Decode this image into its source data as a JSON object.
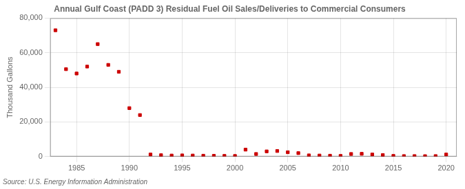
{
  "chart_data": {
    "type": "scatter",
    "title": "Annual Gulf Coast (PADD 3) Residual Fuel Oil Sales/Deliveries to Commercial Consumers",
    "ylabel": "Thousand Gallons",
    "source": "Source: U.S. Energy Information Administration",
    "x": [
      1983,
      1984,
      1985,
      1986,
      1987,
      1988,
      1989,
      1990,
      1991,
      1992,
      1993,
      1994,
      1995,
      1996,
      1997,
      1998,
      1999,
      2000,
      2001,
      2002,
      2003,
      2004,
      2005,
      2006,
      2007,
      2008,
      2009,
      2010,
      2011,
      2012,
      2013,
      2014,
      2015,
      2016,
      2017,
      2018,
      2019,
      2020
    ],
    "values": [
      73000,
      50500,
      48000,
      52000,
      65000,
      53000,
      49000,
      28000,
      24000,
      1200,
      800,
      600,
      700,
      600,
      500,
      450,
      400,
      350,
      4000,
      1500,
      3000,
      3200,
      2500,
      2000,
      700,
      600,
      500,
      400,
      1500,
      1600,
      1200,
      900,
      400,
      300,
      300,
      250,
      300,
      1200
    ],
    "color": "#cc0000",
    "marker": "square",
    "xlim": [
      1982.5,
      2021
    ],
    "xticks": [
      1985,
      1990,
      1995,
      2000,
      2005,
      2010,
      2015,
      2020
    ],
    "ylim": [
      0,
      80000
    ],
    "yticks": [
      0,
      {
        "value": 20000,
        "label": "20,000"
      },
      {
        "value": 40000,
        "label": "40,000"
      },
      {
        "value": 60000,
        "label": "60,000"
      },
      {
        "value": 80000,
        "label": "80,000"
      }
    ],
    "grid": true
  }
}
